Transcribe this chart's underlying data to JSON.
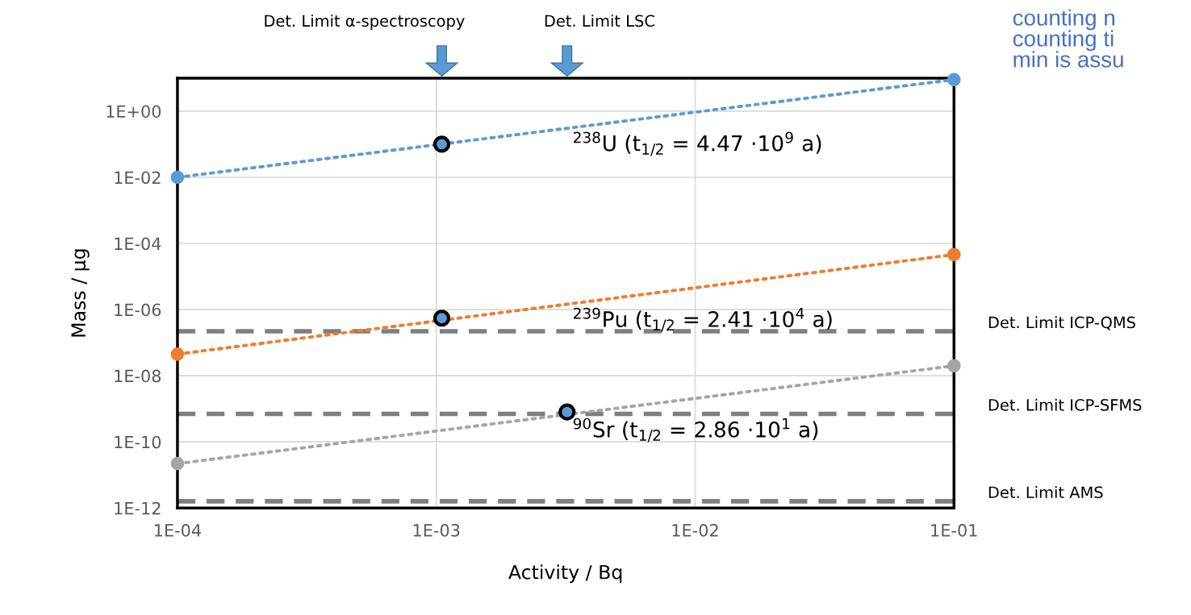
{
  "chart_data": {
    "type": "line",
    "xlabel": "Activity / Bq",
    "ylabel": "Mass / µg",
    "log": "xy",
    "grid": true,
    "legend": false,
    "marker": "circle",
    "line_style": "dotted",
    "xlim": [
      0.0001,
      0.1
    ],
    "xticks": [
      {
        "value": 0.0001,
        "label": "1E-04"
      },
      {
        "value": 0.001,
        "label": "1E-03"
      },
      {
        "value": 0.01,
        "label": "1E-02"
      },
      {
        "value": 0.1,
        "label": "1E-01"
      }
    ],
    "ylim": [
      1e-12,
      10
    ],
    "yticks": [
      {
        "value": 1e-12,
        "label": "1E-12"
      },
      {
        "value": 1e-10,
        "label": "1E-10"
      },
      {
        "value": 1e-08,
        "label": "1E-08"
      },
      {
        "value": 1e-06,
        "label": "1E-06"
      },
      {
        "value": 0.0001,
        "label": "1E-04"
      },
      {
        "value": 0.01,
        "label": "1E-02"
      },
      {
        "value": 1,
        "label": "1E+00"
      }
    ],
    "series": [
      {
        "name": "$^{238}$U (t$_{1/2}$ = 4.47 ·10$^{9}$ a)",
        "color": "#5b9bd5",
        "x": [
          0.0001,
          0.1
        ],
        "values": [
          0.01,
          9
        ]
      },
      {
        "name": "$^{239}$Pu (t$_{1/2}$ = 2.41 ·10$^{4}$ a)",
        "color": "#ed7d31",
        "x": [
          0.0001,
          0.1
        ],
        "values": [
          4.5e-08,
          4.6e-05
        ]
      },
      {
        "name": "$^{90}$Sr (t$_{1/2}$ = 2.86 ·10$^{1}$ a)",
        "color": "#a5a5a5",
        "x": [
          0.0001,
          0.1
        ],
        "values": [
          2.2e-11,
          2e-08
        ]
      },
      {
        "type": "scatter",
        "color": "#5b9bd5",
        "x": [
          0.00105,
          0.00105,
          0.0032
        ],
        "values": [
          0.1,
          5.5e-07,
          8e-10
        ]
      }
    ],
    "ref_lines": [
      {
        "axis": "y",
        "value": 2.2e-07,
        "label": "Det. Limit ICP-QMS",
        "color": "#7f7f7f",
        "line_style": "dashed"
      },
      {
        "axis": "y",
        "value": 7e-10,
        "label": "Det. Limit ICP-SFMS",
        "color": "#7f7f7f",
        "line_style": "dashed"
      },
      {
        "axis": "y",
        "value": 1.6e-12,
        "label": "Det. Limit AMS",
        "color": "#7f7f7f",
        "line_style": "dashed"
      }
    ],
    "annotations": [
      "Det. Limit α-spectroscopy",
      "Det. Limit LSC",
      "counting n\ncounting ti\nmin is assu"
    ]
  }
}
